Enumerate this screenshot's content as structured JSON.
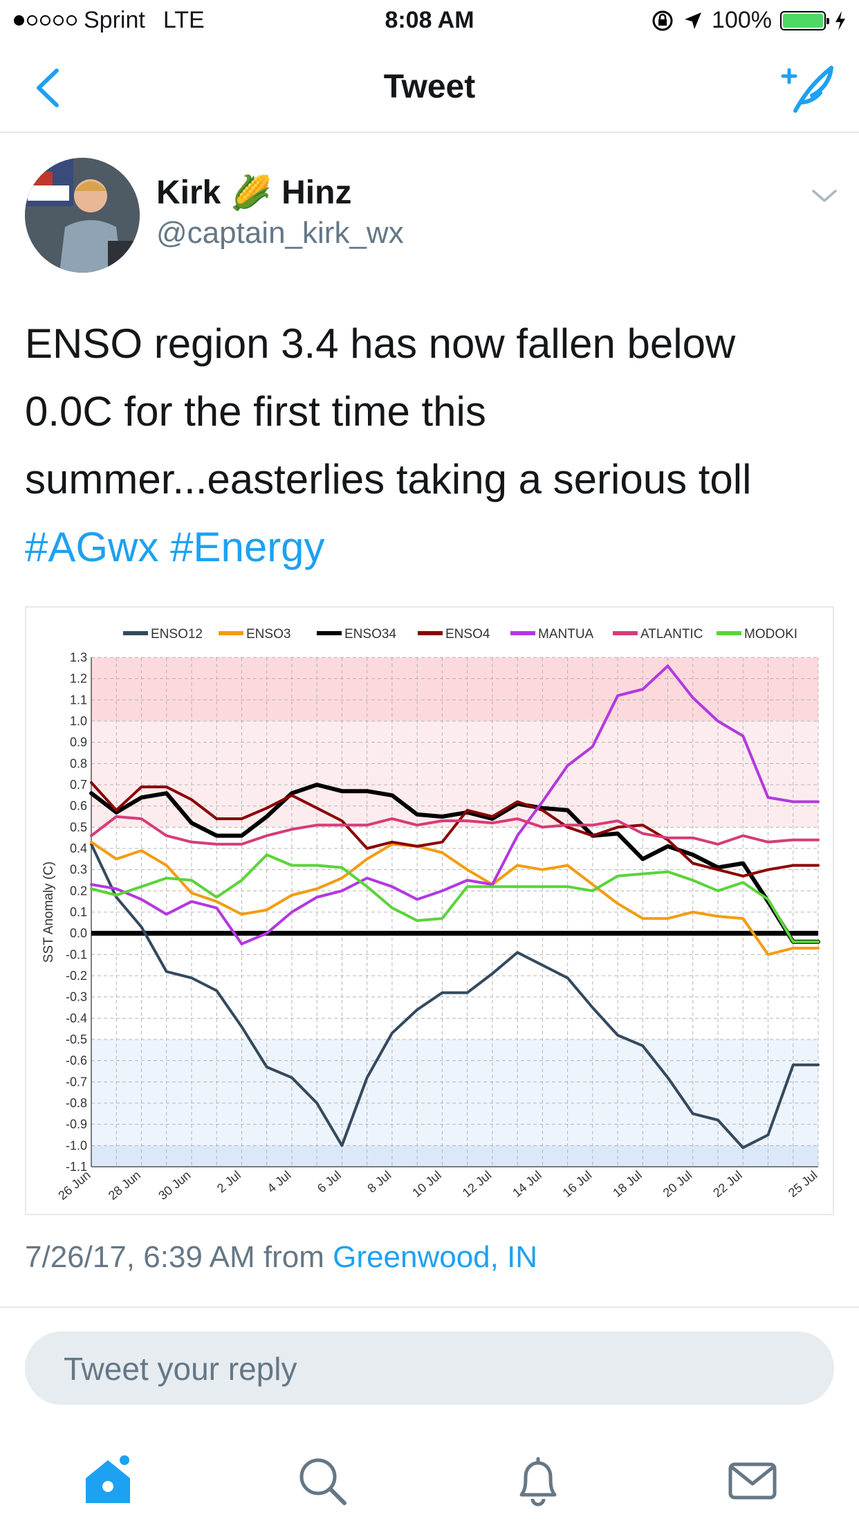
{
  "status_bar": {
    "carrier": "Sprint",
    "network": "LTE",
    "time": "8:08 AM",
    "battery": "100%",
    "icons": [
      "signal-dots-icon",
      "orientation-lock-icon",
      "location-arrow-icon",
      "battery-icon",
      "charging-bolt-icon"
    ]
  },
  "nav": {
    "title": "Tweet",
    "back_icon": "chevron-left-icon",
    "compose_icon": "compose-tweet-icon"
  },
  "tweet": {
    "user_first": "Kirk",
    "user_last": "Hinz",
    "user_emoji": "🌽",
    "handle": "@captain_kirk_wx",
    "text_line1": "ENSO region 3.4 has now fallen below",
    "text_line2": "0.0C for the first time this",
    "text_line3": "summer...easterlies taking a serious toll",
    "hashtags": [
      "#AGwx",
      "#Energy"
    ],
    "timestamp": "7/26/17, 6:39 AM",
    "from_label": "from",
    "location": "Greenwood, IN"
  },
  "reply": {
    "placeholder": "Tweet your reply"
  },
  "tab_bar": {
    "icons": [
      "home-icon",
      "search-icon",
      "notifications-icon",
      "messages-icon"
    ]
  },
  "chart_data": {
    "type": "line",
    "ylabel": "SST Anomaly (C)",
    "ylim": [
      -1.1,
      1.3
    ],
    "grid": true,
    "legend_position": "top",
    "zero_line_color": "#000000",
    "y_ticks": [
      "1.3",
      "1.2",
      "1.1",
      "1.0",
      "0.9",
      "0.8",
      "0.7",
      "0.6",
      "0.5",
      "0.4",
      "0.3",
      "0.2",
      "0.1",
      "0.0",
      "-0.1",
      "-0.2",
      "-0.3",
      "-0.4",
      "-0.5",
      "-0.6",
      "-0.7",
      "-0.8",
      "-0.9",
      "-1.0",
      "-1.1"
    ],
    "x_tick_labels": [
      "26 Jun",
      "28 Jun",
      "30 Jun",
      "2 Jul",
      "4 Jul",
      "6 Jul",
      "8 Jul",
      "10 Jul",
      "12 Jul",
      "14 Jul",
      "16 Jul",
      "18 Jul",
      "20 Jul",
      "22 Jul",
      "25 Jul"
    ],
    "x": [
      "26 Jun",
      "27 Jun",
      "28 Jun",
      "29 Jun",
      "30 Jun",
      "1 Jul",
      "2 Jul",
      "3 Jul",
      "4 Jul",
      "5 Jul",
      "6 Jul",
      "7 Jul",
      "8 Jul",
      "9 Jul",
      "10 Jul",
      "11 Jul",
      "12 Jul",
      "13 Jul",
      "14 Jul",
      "15 Jul",
      "16 Jul",
      "17 Jul",
      "18 Jul",
      "19 Jul",
      "20 Jul",
      "21 Jul",
      "22 Jul",
      "23 Jul",
      "24 Jul",
      "25 Jul"
    ],
    "bands": [
      {
        "from": 1.0,
        "to": 1.3,
        "color": "#fcd9dc"
      },
      {
        "from": 0.5,
        "to": 1.0,
        "color": "#fdecee"
      },
      {
        "from": -1.0,
        "to": -0.5,
        "color": "#eef4fc"
      },
      {
        "from": -1.1,
        "to": -1.0,
        "color": "#dbe8f8"
      }
    ],
    "series": [
      {
        "name": "ENSO12",
        "color": "#34495e",
        "values": [
          0.42,
          0.17,
          0.03,
          -0.18,
          -0.21,
          -0.27,
          -0.44,
          -0.63,
          -0.68,
          -0.8,
          -1.0,
          -0.68,
          -0.47,
          -0.36,
          -0.28,
          -0.28,
          -0.19,
          -0.09,
          -0.15,
          -0.21,
          -0.35,
          -0.48,
          -0.53,
          -0.68,
          -0.85,
          -0.88,
          -1.01,
          -0.95,
          -0.62,
          -0.62
        ]
      },
      {
        "name": "ENSO3",
        "color": "#f39c12",
        "values": [
          0.43,
          0.35,
          0.39,
          0.32,
          0.19,
          0.15,
          0.09,
          0.11,
          0.18,
          0.21,
          0.26,
          0.35,
          0.42,
          0.41,
          0.38,
          0.3,
          0.23,
          0.32,
          0.3,
          0.32,
          0.23,
          0.14,
          0.07,
          0.07,
          0.1,
          0.08,
          0.07,
          -0.1,
          -0.07,
          -0.07
        ]
      },
      {
        "name": "ENSO34",
        "color": "#000000",
        "values": [
          0.66,
          0.57,
          0.64,
          0.66,
          0.52,
          0.46,
          0.46,
          0.55,
          0.66,
          0.7,
          0.67,
          0.67,
          0.65,
          0.56,
          0.55,
          0.57,
          0.54,
          0.61,
          0.59,
          0.58,
          0.46,
          0.47,
          0.35,
          0.41,
          0.37,
          0.31,
          0.33,
          0.15,
          -0.04,
          -0.04
        ]
      },
      {
        "name": "ENSO4",
        "color": "#8b0000",
        "values": [
          0.71,
          0.58,
          0.69,
          0.69,
          0.63,
          0.54,
          0.54,
          0.59,
          0.65,
          0.59,
          0.53,
          0.4,
          0.43,
          0.41,
          0.43,
          0.58,
          0.55,
          0.62,
          0.58,
          0.5,
          0.46,
          0.5,
          0.51,
          0.44,
          0.33,
          0.3,
          0.27,
          0.3,
          0.32,
          0.32
        ]
      },
      {
        "name": "MANTUA",
        "color": "#b338e0",
        "values": [
          0.23,
          0.21,
          0.16,
          0.09,
          0.15,
          0.12,
          -0.05,
          0.0,
          0.1,
          0.17,
          0.2,
          0.26,
          0.22,
          0.16,
          0.2,
          0.25,
          0.23,
          0.46,
          0.62,
          0.79,
          0.88,
          1.12,
          1.15,
          1.26,
          1.11,
          1.0,
          0.93,
          0.64,
          0.62,
          0.62
        ]
      },
      {
        "name": "ATLANTIC",
        "color": "#d63c78",
        "values": [
          0.46,
          0.55,
          0.54,
          0.46,
          0.43,
          0.42,
          0.42,
          0.46,
          0.49,
          0.51,
          0.51,
          0.51,
          0.54,
          0.51,
          0.53,
          0.53,
          0.52,
          0.54,
          0.5,
          0.51,
          0.51,
          0.53,
          0.47,
          0.45,
          0.45,
          0.42,
          0.46,
          0.43,
          0.44,
          0.44
        ]
      },
      {
        "name": "MODOKI",
        "color": "#5ad43a",
        "values": [
          0.21,
          0.18,
          0.22,
          0.26,
          0.25,
          0.17,
          0.25,
          0.37,
          0.32,
          0.32,
          0.31,
          0.22,
          0.12,
          0.06,
          0.07,
          0.22,
          0.22,
          0.22,
          0.22,
          0.22,
          0.2,
          0.27,
          0.28,
          0.29,
          0.25,
          0.2,
          0.24,
          0.16,
          -0.04,
          -0.04
        ]
      }
    ]
  }
}
